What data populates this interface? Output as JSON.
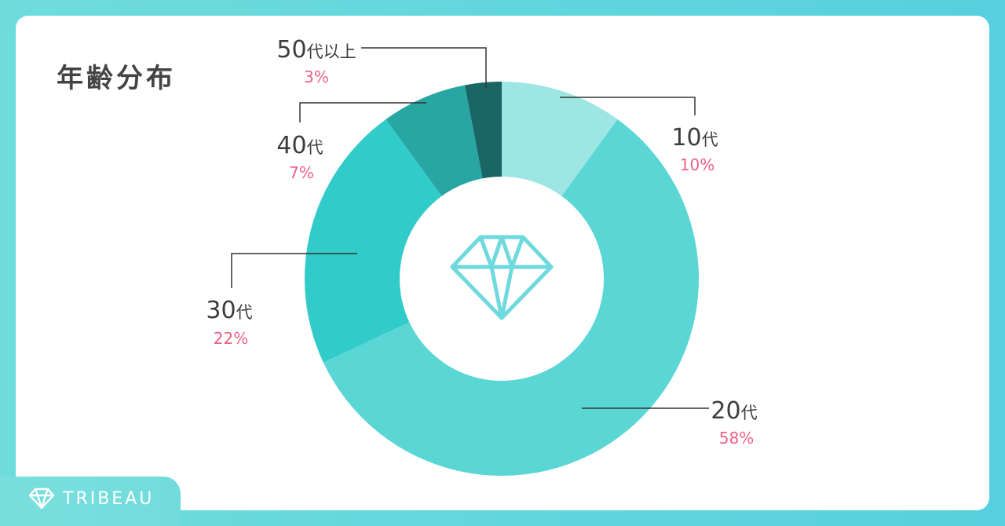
{
  "chart_data": {
    "type": "pie",
    "title": "年齢分布",
    "donut": true,
    "center_icon": "diamond-icon",
    "slices": [
      {
        "label": "10",
        "suffix": "代",
        "value": 10,
        "percent": "10%",
        "color": "#9de6e3"
      },
      {
        "label": "20",
        "suffix": "代",
        "value": 58,
        "percent": "58%",
        "color": "#5ad6d5"
      },
      {
        "label": "30",
        "suffix": "代",
        "value": 22,
        "percent": "22%",
        "color": "#31cbc9"
      },
      {
        "label": "40",
        "suffix": "代",
        "value": 7,
        "percent": "7%",
        "color": "#28a6a4"
      },
      {
        "label": "50",
        "suffix": "代以上",
        "value": 3,
        "percent": "3%",
        "color": "#1a6664"
      }
    ],
    "colors": {
      "label_text": "#3d3d3d",
      "percent_text": "#ee5f86",
      "leader_line": "#333333"
    }
  },
  "brand": {
    "name": "TRIBEAU",
    "icon": "diamond-icon"
  }
}
